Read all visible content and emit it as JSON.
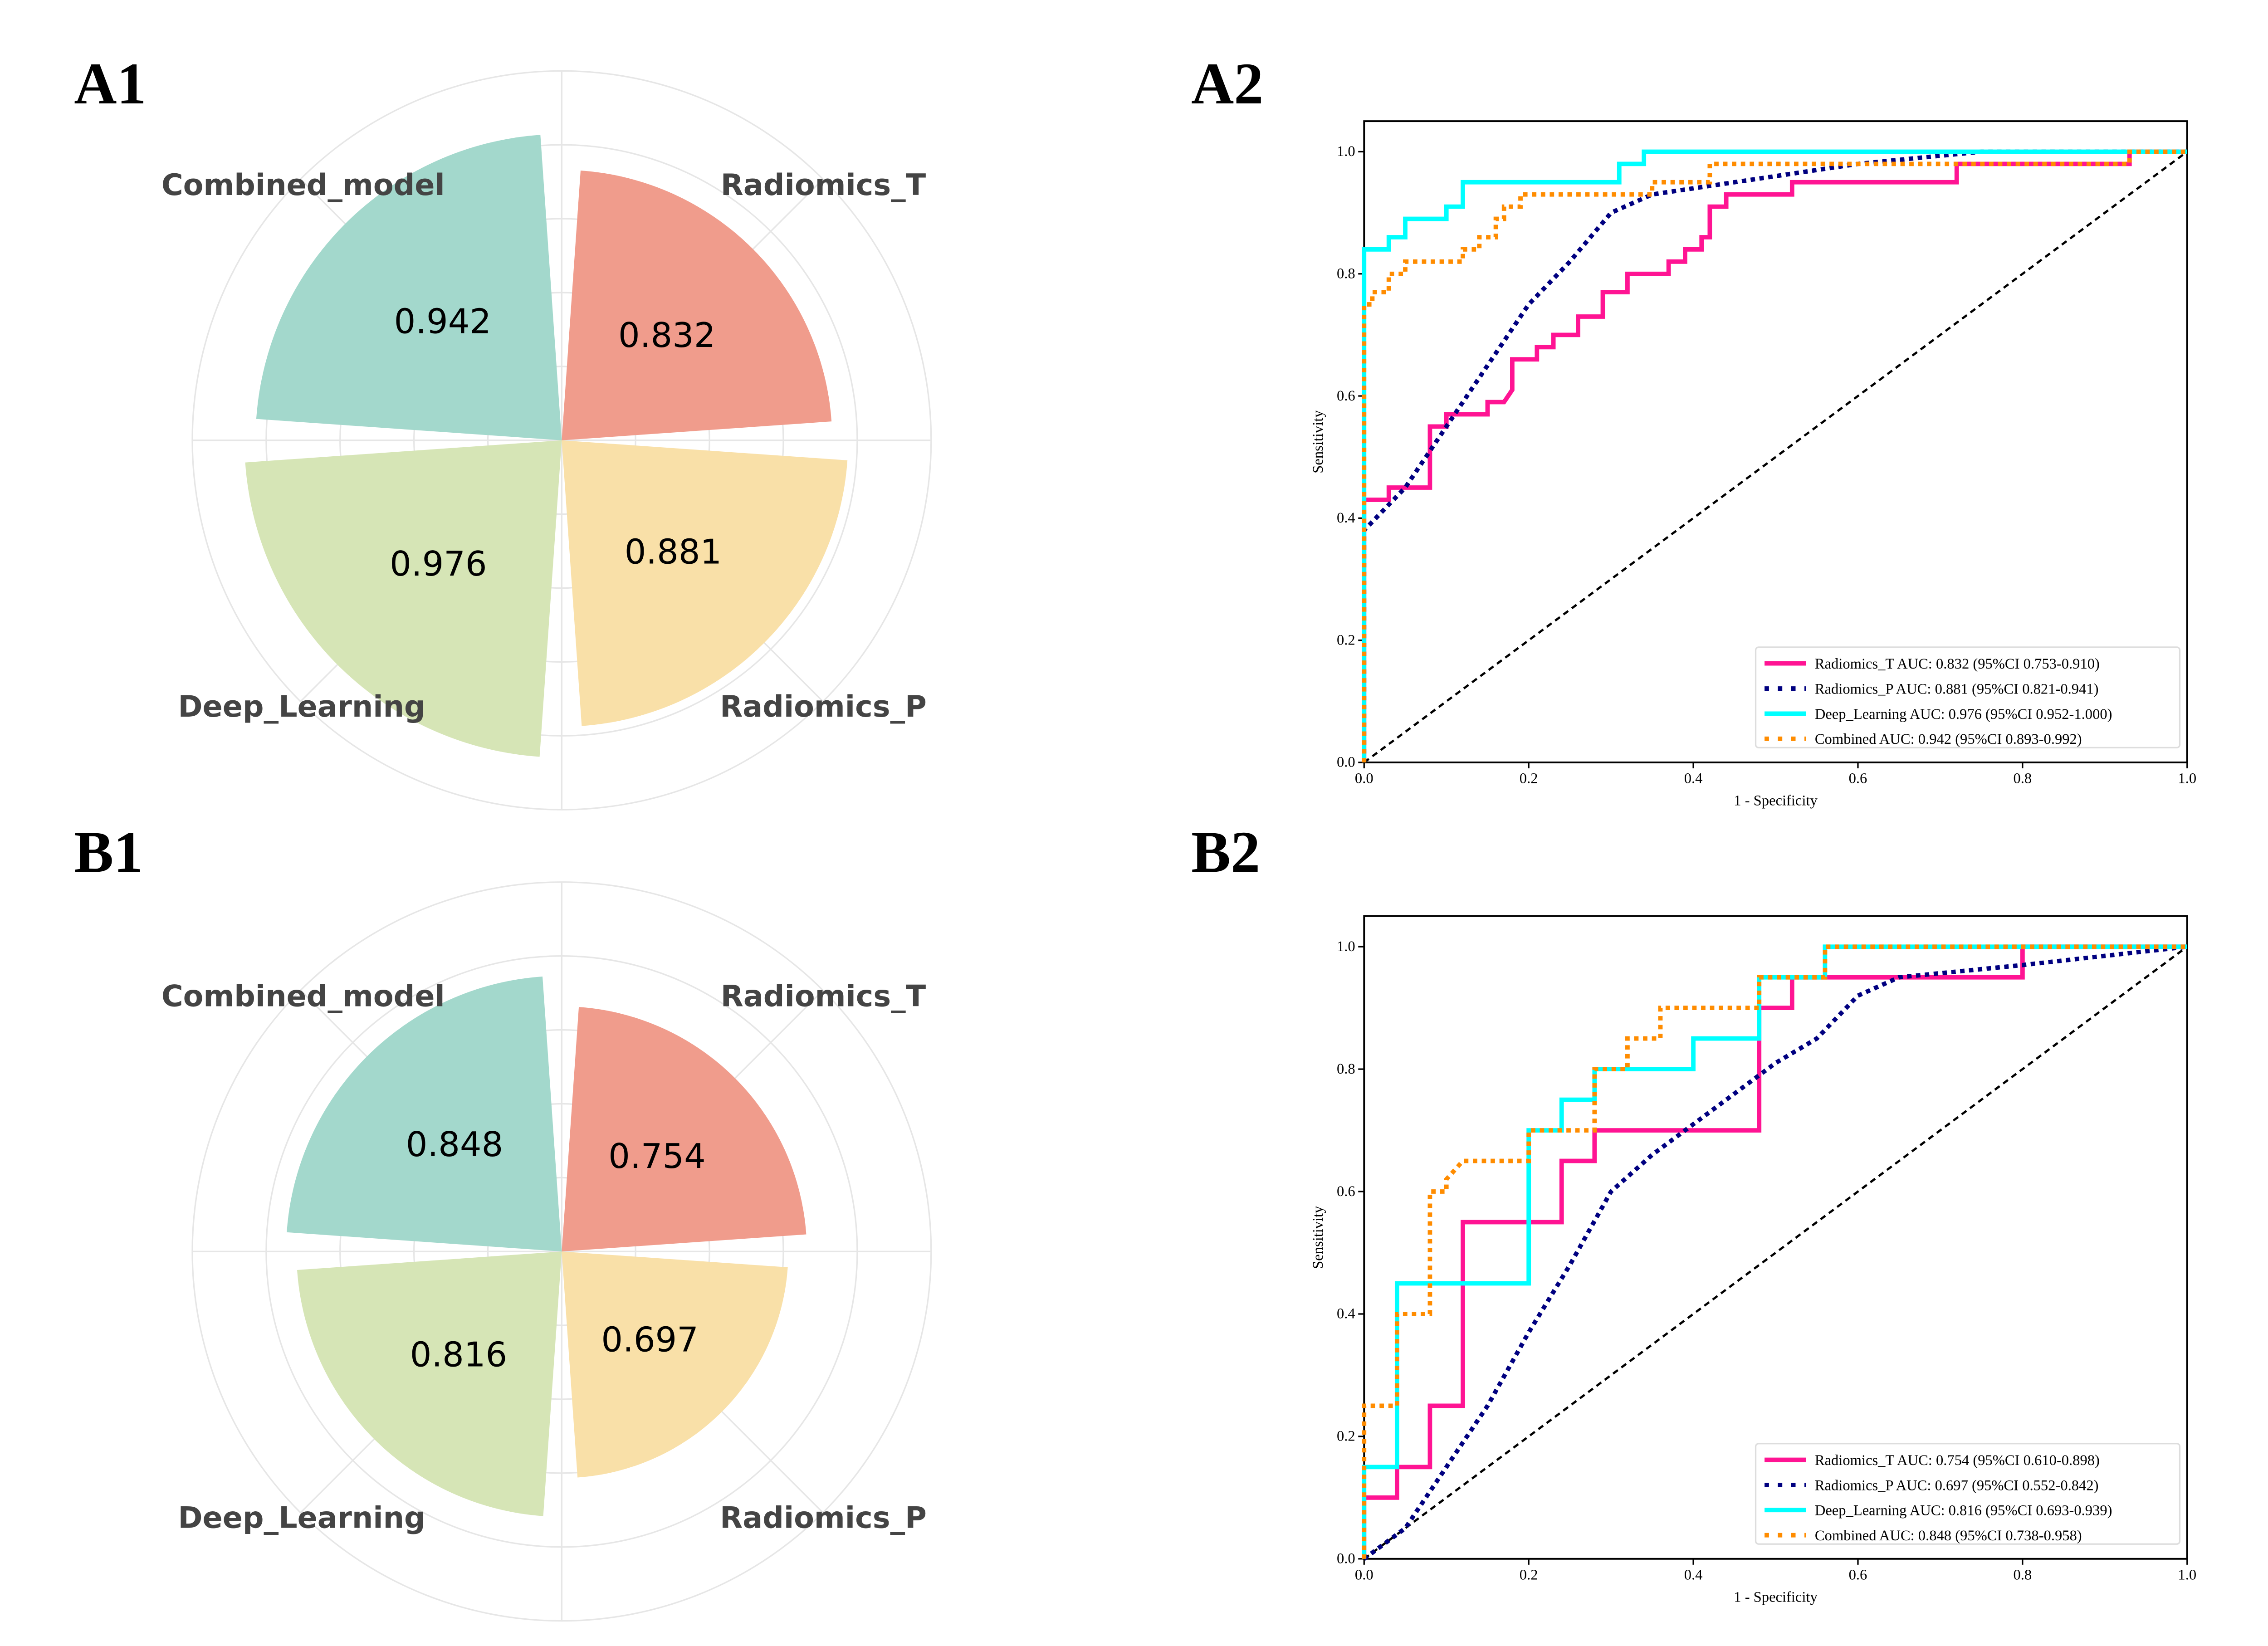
{
  "panels": {
    "A1": "A1",
    "A2": "A2",
    "B1": "B1",
    "B2": "B2"
  },
  "colors": {
    "Radiomics_T": "#ff1493",
    "Radiomics_P": "#000080",
    "Deep_Learning": "#00ffff",
    "Combined": "#ff8c00",
    "petal_Combined_model": "#a3d8cc",
    "petal_Radiomics_T": "#f09c8c",
    "petal_Deep_Learning": "#d6e5b6",
    "petal_Radiomics_P": "#f9e0a8"
  },
  "chart_data": [
    {
      "id": "A1",
      "type": "polar-bar",
      "categories": [
        "Radiomics_T",
        "Radiomics_P",
        "Deep_Learning",
        "Combined_model"
      ],
      "values": [
        0.832,
        0.881,
        0.976,
        0.942
      ],
      "value_labels": [
        "0.832",
        "0.881",
        "0.976",
        "0.942"
      ],
      "grid": true
    },
    {
      "id": "A2",
      "type": "line",
      "xlabel": "1 - Specificity",
      "ylabel": "Sensitivity",
      "xlim": [
        0,
        1
      ],
      "ylim": [
        0,
        1.05
      ],
      "xticks": [
        "0.0",
        "0.2",
        "0.4",
        "0.6",
        "0.8",
        "1.0"
      ],
      "yticks": [
        "0.0",
        "0.2",
        "0.4",
        "0.6",
        "0.8",
        "1.0"
      ],
      "legend_position": "bottom-right",
      "series": [
        {
          "name": "Radiomics_T AUC: 0.832 (95%CI 0.753-0.910)",
          "key": "Radiomics_T",
          "style": "solid",
          "points": [
            [
              0,
              0
            ],
            [
              0,
              0.43
            ],
            [
              0.03,
              0.43
            ],
            [
              0.03,
              0.45
            ],
            [
              0.08,
              0.45
            ],
            [
              0.08,
              0.55
            ],
            [
              0.1,
              0.55
            ],
            [
              0.1,
              0.57
            ],
            [
              0.15,
              0.57
            ],
            [
              0.15,
              0.59
            ],
            [
              0.17,
              0.59
            ],
            [
              0.18,
              0.61
            ],
            [
              0.18,
              0.66
            ],
            [
              0.21,
              0.66
            ],
            [
              0.21,
              0.68
            ],
            [
              0.23,
              0.68
            ],
            [
              0.23,
              0.7
            ],
            [
              0.26,
              0.7
            ],
            [
              0.26,
              0.73
            ],
            [
              0.29,
              0.73
            ],
            [
              0.29,
              0.77
            ],
            [
              0.32,
              0.77
            ],
            [
              0.32,
              0.8
            ],
            [
              0.37,
              0.8
            ],
            [
              0.37,
              0.82
            ],
            [
              0.39,
              0.82
            ],
            [
              0.39,
              0.84
            ],
            [
              0.41,
              0.84
            ],
            [
              0.41,
              0.86
            ],
            [
              0.42,
              0.86
            ],
            [
              0.42,
              0.91
            ],
            [
              0.44,
              0.91
            ],
            [
              0.44,
              0.93
            ],
            [
              0.52,
              0.93
            ],
            [
              0.52,
              0.95
            ],
            [
              0.72,
              0.95
            ],
            [
              0.72,
              0.98
            ],
            [
              0.93,
              0.98
            ],
            [
              0.93,
              1
            ],
            [
              1,
              1
            ]
          ]
        },
        {
          "name": "Radiomics_P AUC: 0.881 (95%CI 0.821-0.941)",
          "key": "Radiomics_P",
          "style": "dotted",
          "points": [
            [
              0,
              0
            ],
            [
              0,
              0.38
            ],
            [
              0.05,
              0.45
            ],
            [
              0.1,
              0.55
            ],
            [
              0.15,
              0.65
            ],
            [
              0.2,
              0.75
            ],
            [
              0.25,
              0.82
            ],
            [
              0.3,
              0.9
            ],
            [
              0.35,
              0.93
            ],
            [
              0.4,
              0.94
            ],
            [
              0.5,
              0.96
            ],
            [
              0.6,
              0.98
            ],
            [
              0.75,
              1
            ],
            [
              1,
              1
            ]
          ]
        },
        {
          "name": "Deep_Learning AUC: 0.976 (95%CI 0.952-1.000)",
          "key": "Deep_Learning",
          "style": "solid",
          "points": [
            [
              0,
              0
            ],
            [
              0,
              0.84
            ],
            [
              0.03,
              0.84
            ],
            [
              0.03,
              0.86
            ],
            [
              0.05,
              0.86
            ],
            [
              0.05,
              0.89
            ],
            [
              0.1,
              0.89
            ],
            [
              0.1,
              0.91
            ],
            [
              0.12,
              0.91
            ],
            [
              0.12,
              0.95
            ],
            [
              0.31,
              0.95
            ],
            [
              0.31,
              0.98
            ],
            [
              0.34,
              0.98
            ],
            [
              0.34,
              1
            ],
            [
              1,
              1
            ]
          ]
        },
        {
          "name": "Combined AUC: 0.942 (95%CI 0.893-0.992)",
          "key": "Combined",
          "style": "dotted",
          "points": [
            [
              0,
              0
            ],
            [
              0,
              0.75
            ],
            [
              0.01,
              0.75
            ],
            [
              0.01,
              0.77
            ],
            [
              0.03,
              0.77
            ],
            [
              0.03,
              0.8
            ],
            [
              0.05,
              0.8
            ],
            [
              0.05,
              0.82
            ],
            [
              0.12,
              0.82
            ],
            [
              0.12,
              0.84
            ],
            [
              0.14,
              0.84
            ],
            [
              0.14,
              0.86
            ],
            [
              0.16,
              0.86
            ],
            [
              0.16,
              0.89
            ],
            [
              0.17,
              0.89
            ],
            [
              0.17,
              0.91
            ],
            [
              0.19,
              0.91
            ],
            [
              0.19,
              0.93
            ],
            [
              0.35,
              0.93
            ],
            [
              0.35,
              0.95
            ],
            [
              0.42,
              0.95
            ],
            [
              0.42,
              0.98
            ],
            [
              0.93,
              0.98
            ],
            [
              0.93,
              1
            ],
            [
              1,
              1
            ]
          ]
        }
      ]
    },
    {
      "id": "B1",
      "type": "polar-bar",
      "categories": [
        "Radiomics_T",
        "Radiomics_P",
        "Deep_Learning",
        "Combined_model"
      ],
      "values": [
        0.754,
        0.697,
        0.816,
        0.848
      ],
      "value_labels": [
        "0.754",
        "0.697",
        "0.816",
        "0.848"
      ],
      "grid": true
    },
    {
      "id": "B2",
      "type": "line",
      "xlabel": "1 - Specificity",
      "ylabel": "Sensitivity",
      "xlim": [
        0,
        1
      ],
      "ylim": [
        0,
        1.05
      ],
      "xticks": [
        "0.0",
        "0.2",
        "0.4",
        "0.6",
        "0.8",
        "1.0"
      ],
      "yticks": [
        "0.0",
        "0.2",
        "0.4",
        "0.6",
        "0.8",
        "1.0"
      ],
      "legend_position": "bottom-right",
      "series": [
        {
          "name": "Radiomics_T AUC: 0.754 (95%CI 0.610-0.898)",
          "key": "Radiomics_T",
          "style": "solid",
          "points": [
            [
              0,
              0
            ],
            [
              0,
              0.1
            ],
            [
              0.04,
              0.1
            ],
            [
              0.04,
              0.15
            ],
            [
              0.08,
              0.15
            ],
            [
              0.08,
              0.25
            ],
            [
              0.12,
              0.25
            ],
            [
              0.12,
              0.55
            ],
            [
              0.24,
              0.55
            ],
            [
              0.24,
              0.65
            ],
            [
              0.28,
              0.65
            ],
            [
              0.28,
              0.7
            ],
            [
              0.48,
              0.7
            ],
            [
              0.48,
              0.9
            ],
            [
              0.52,
              0.9
            ],
            [
              0.52,
              0.95
            ],
            [
              0.8,
              0.95
            ],
            [
              0.8,
              1
            ],
            [
              1,
              1
            ]
          ]
        },
        {
          "name": "Radiomics_P AUC: 0.697 (95%CI 0.552-0.842)",
          "key": "Radiomics_P",
          "style": "dotted",
          "points": [
            [
              0,
              0
            ],
            [
              0.05,
              0.05
            ],
            [
              0.1,
              0.15
            ],
            [
              0.15,
              0.25
            ],
            [
              0.2,
              0.37
            ],
            [
              0.25,
              0.48
            ],
            [
              0.3,
              0.6
            ],
            [
              0.35,
              0.66
            ],
            [
              0.4,
              0.71
            ],
            [
              0.45,
              0.76
            ],
            [
              0.5,
              0.81
            ],
            [
              0.55,
              0.85
            ],
            [
              0.6,
              0.92
            ],
            [
              0.65,
              0.95
            ],
            [
              0.8,
              0.97
            ],
            [
              1,
              1
            ]
          ]
        },
        {
          "name": "Deep_Learning AUC: 0.816 (95%CI 0.693-0.939)",
          "key": "Deep_Learning",
          "style": "solid",
          "points": [
            [
              0,
              0
            ],
            [
              0,
              0.15
            ],
            [
              0.04,
              0.15
            ],
            [
              0.04,
              0.45
            ],
            [
              0.2,
              0.45
            ],
            [
              0.2,
              0.7
            ],
            [
              0.24,
              0.7
            ],
            [
              0.24,
              0.75
            ],
            [
              0.28,
              0.75
            ],
            [
              0.28,
              0.8
            ],
            [
              0.4,
              0.8
            ],
            [
              0.4,
              0.85
            ],
            [
              0.48,
              0.85
            ],
            [
              0.48,
              0.95
            ],
            [
              0.56,
              0.95
            ],
            [
              0.56,
              1
            ],
            [
              1,
              1
            ]
          ]
        },
        {
          "name": "Combined AUC: 0.848 (95%CI 0.738-0.958)",
          "key": "Combined",
          "style": "dotted",
          "points": [
            [
              0,
              0
            ],
            [
              0,
              0.25
            ],
            [
              0.04,
              0.25
            ],
            [
              0.04,
              0.4
            ],
            [
              0.08,
              0.4
            ],
            [
              0.08,
              0.6
            ],
            [
              0.1,
              0.6
            ],
            [
              0.1,
              0.62
            ],
            [
              0.12,
              0.65
            ],
            [
              0.2,
              0.65
            ],
            [
              0.2,
              0.7
            ],
            [
              0.28,
              0.7
            ],
            [
              0.28,
              0.8
            ],
            [
              0.32,
              0.8
            ],
            [
              0.32,
              0.85
            ],
            [
              0.36,
              0.85
            ],
            [
              0.36,
              0.9
            ],
            [
              0.48,
              0.9
            ],
            [
              0.48,
              0.95
            ],
            [
              0.56,
              0.95
            ],
            [
              0.56,
              1
            ],
            [
              1,
              1
            ]
          ]
        }
      ]
    }
  ]
}
